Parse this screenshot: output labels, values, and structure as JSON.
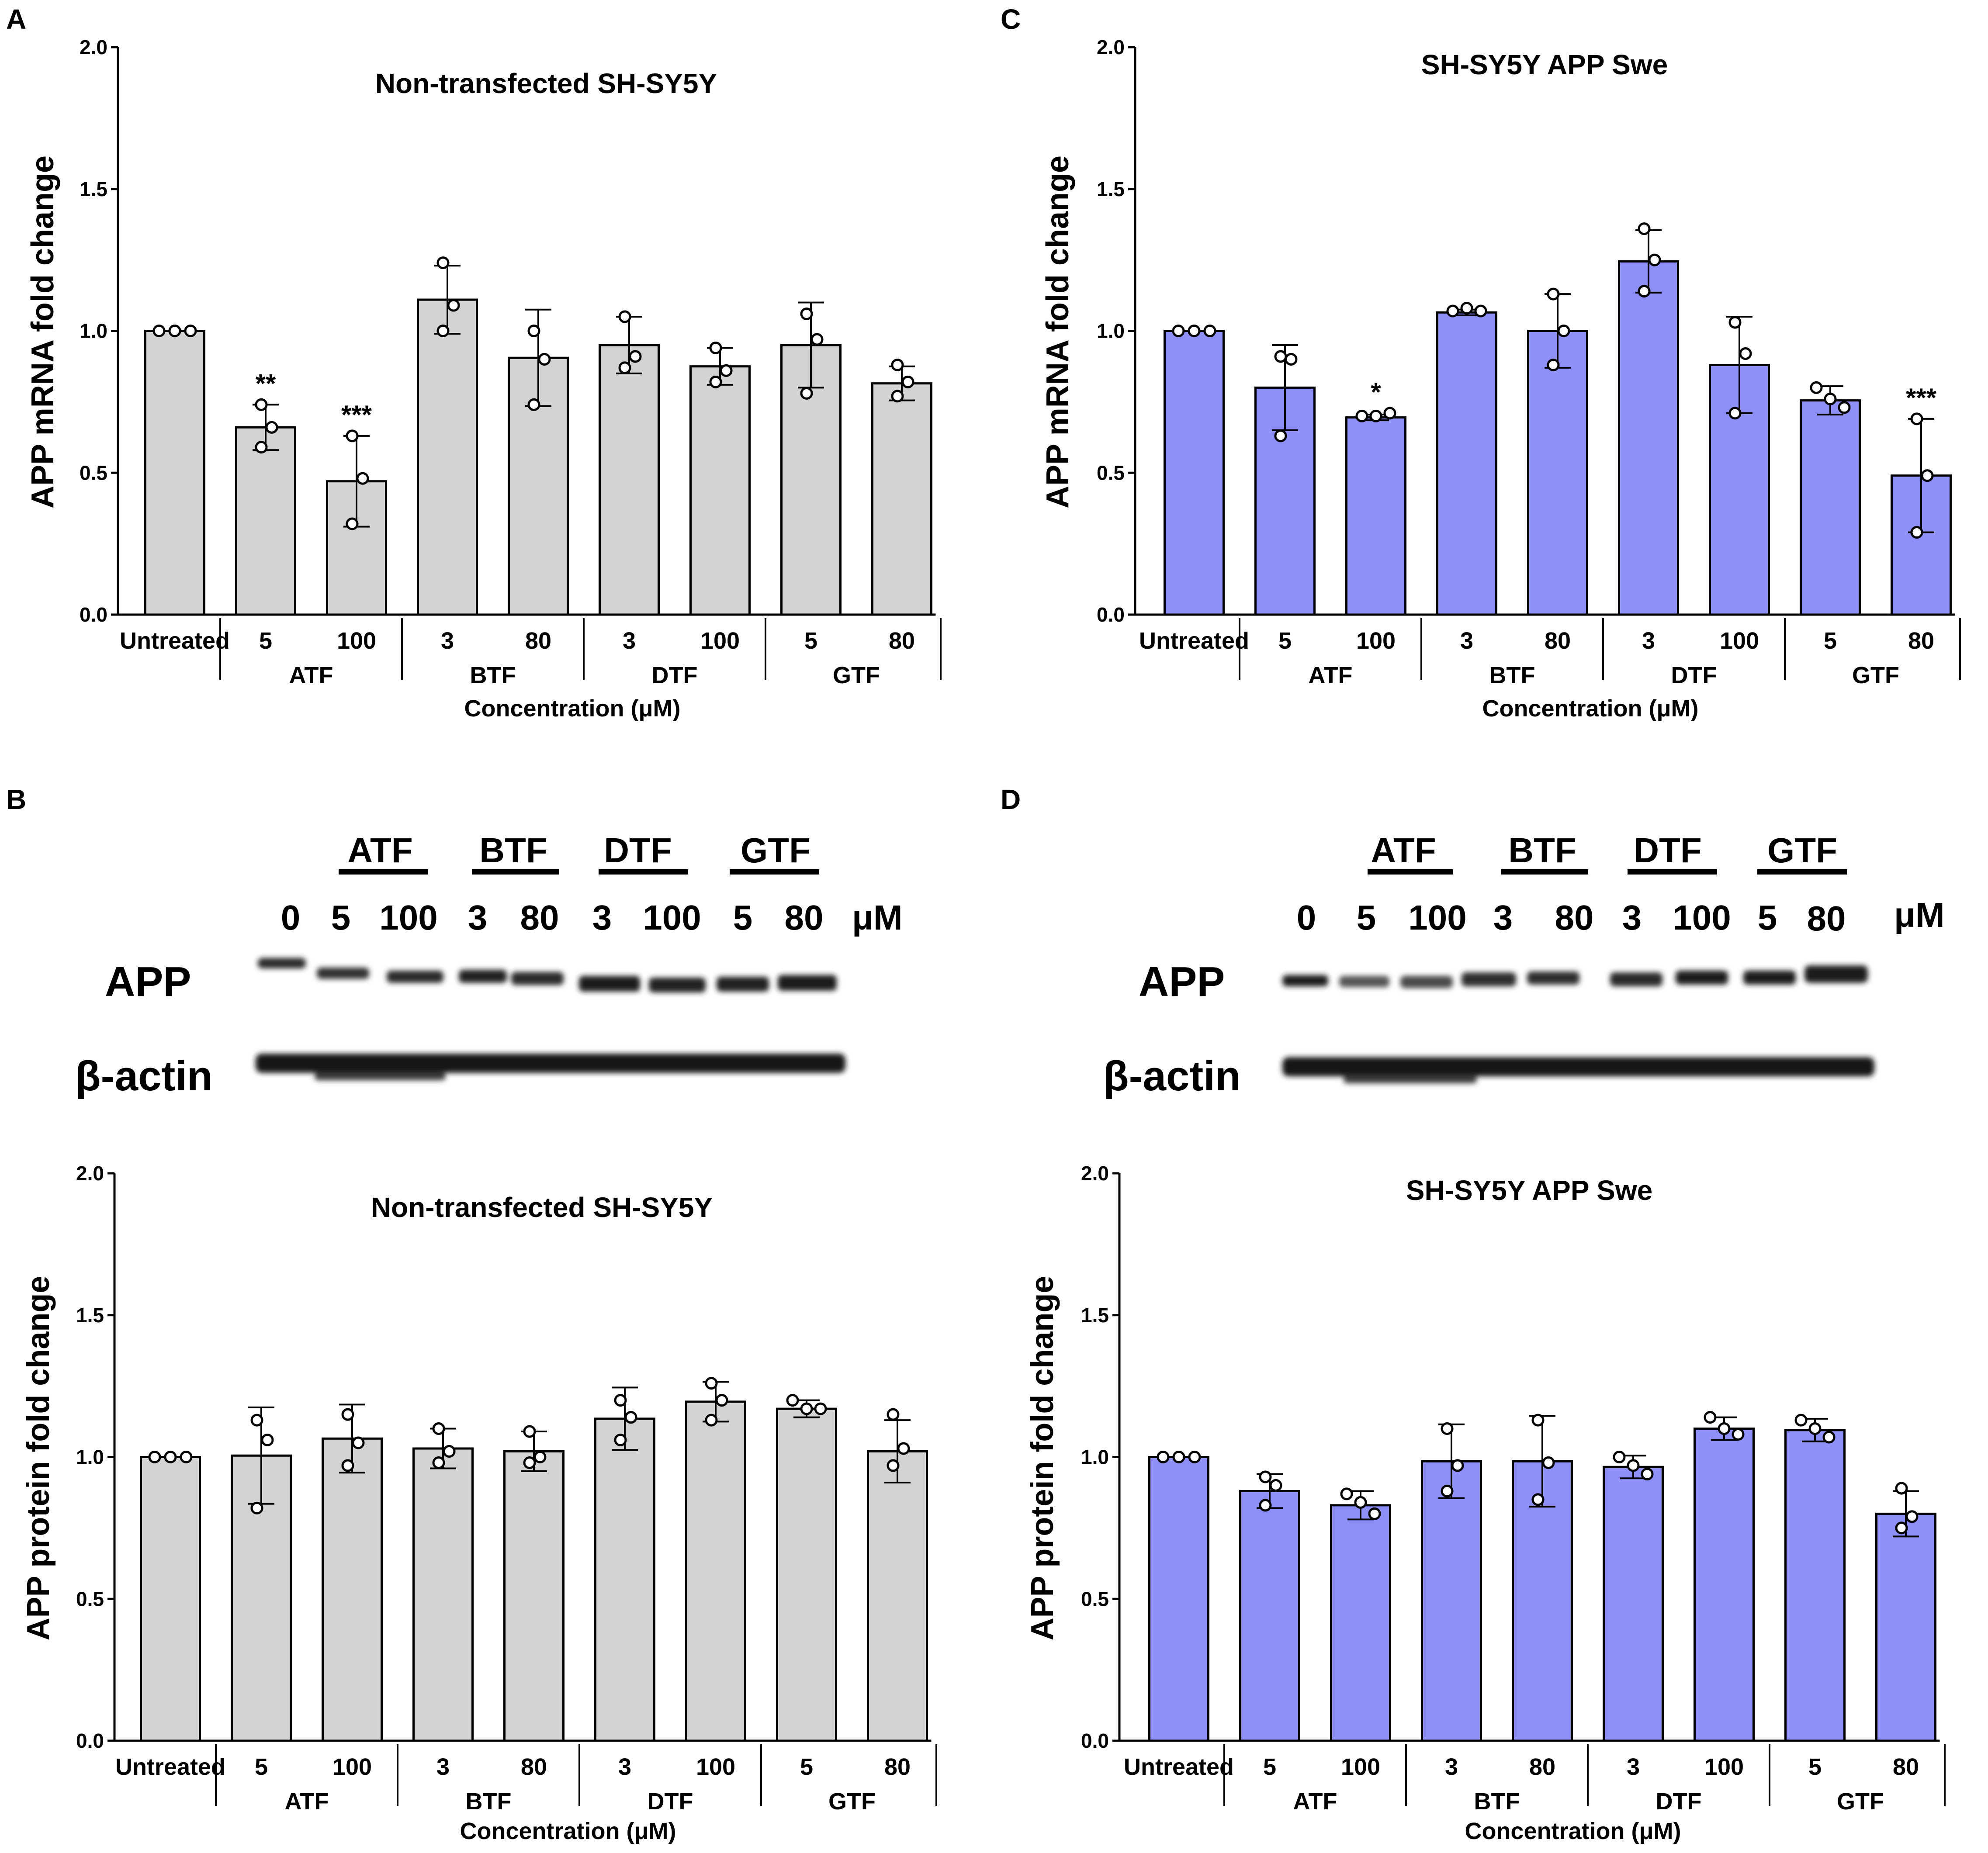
{
  "colors": {
    "grey_bar": "#d3d3d3",
    "blue_bar": "#8f8ff8",
    "axis": "#000000"
  },
  "panel_letters": {
    "a": "A",
    "b": "B",
    "c": "C",
    "d": "D"
  },
  "chart_data": [
    {
      "id": "A",
      "type": "bar",
      "title": "Non-transfected SH-SY5Y",
      "ylabel": "APP mRNA fold change",
      "xlabel": "Concentration (μM)",
      "ylim": [
        0,
        2.0
      ],
      "yticks": [
        "0.0",
        "0.5",
        "1.0",
        "1.5",
        "2.0"
      ],
      "categories": [
        "Untreated",
        "5",
        "100",
        "3",
        "80",
        "3",
        "100",
        "5",
        "80"
      ],
      "groups": [
        "ATF",
        "BTF",
        "DTF",
        "GTF"
      ],
      "values": [
        1.0,
        0.66,
        0.47,
        1.11,
        0.905,
        0.95,
        0.875,
        0.95,
        0.815
      ],
      "sd": [
        0.0,
        0.08,
        0.16,
        0.12,
        0.17,
        0.1,
        0.065,
        0.15,
        0.06
      ],
      "points": [
        [
          1.0,
          1.0,
          1.0
        ],
        [
          0.74,
          0.66,
          0.59
        ],
        [
          0.63,
          0.48,
          0.32
        ],
        [
          1.24,
          1.09,
          1.0
        ],
        [
          1.0,
          0.9,
          0.74
        ],
        [
          1.05,
          0.91,
          0.87
        ],
        [
          0.94,
          0.86,
          0.82
        ],
        [
          1.06,
          0.97,
          0.78
        ],
        [
          0.88,
          0.82,
          0.77
        ]
      ],
      "significance": [
        "",
        "**",
        "***",
        "",
        "",
        "",
        "",
        "",
        ""
      ],
      "bar_color": "#d3d3d3"
    },
    {
      "id": "C",
      "type": "bar",
      "title": "SH-SY5Y APP Swe",
      "ylabel": "APP mRNA fold change",
      "xlabel": "Concentration (μM)",
      "ylim": [
        0,
        2.0
      ],
      "yticks": [
        "0.0",
        "0.5",
        "1.0",
        "1.5",
        "2.0"
      ],
      "categories": [
        "Untreated",
        "5",
        "100",
        "3",
        "80",
        "3",
        "100",
        "5",
        "80"
      ],
      "groups": [
        "ATF",
        "BTF",
        "DTF",
        "GTF"
      ],
      "values": [
        1.0,
        0.8,
        0.695,
        1.065,
        1.0,
        1.245,
        0.88,
        0.755,
        0.49
      ],
      "sd": [
        0.0,
        0.15,
        0.01,
        0.01,
        0.13,
        0.11,
        0.17,
        0.05,
        0.2
      ],
      "points": [
        [
          1.0,
          1.0,
          1.0
        ],
        [
          0.91,
          0.9,
          0.63
        ],
        [
          0.7,
          0.7,
          0.71
        ],
        [
          1.07,
          1.08,
          1.07
        ],
        [
          1.13,
          1.0,
          0.88
        ],
        [
          1.36,
          1.25,
          1.14
        ],
        [
          1.03,
          0.92,
          0.71
        ],
        [
          0.8,
          0.76,
          0.73
        ],
        [
          0.69,
          0.49,
          0.29
        ]
      ],
      "significance": [
        "",
        "",
        "*",
        "",
        "",
        "",
        "",
        "",
        "***"
      ],
      "bar_color": "#8f8ff8"
    },
    {
      "id": "B",
      "type": "bar",
      "title": "Non-transfected SH-SY5Y",
      "ylabel": "APP protein fold change",
      "xlabel": "Concentration (μM)",
      "ylim": [
        0,
        2.0
      ],
      "yticks": [
        "0.0",
        "0.5",
        "1.0",
        "1.5",
        "2.0"
      ],
      "categories": [
        "Untreated",
        "5",
        "100",
        "3",
        "80",
        "3",
        "100",
        "5",
        "80"
      ],
      "groups": [
        "ATF",
        "BTF",
        "DTF",
        "GTF"
      ],
      "values": [
        1.0,
        1.005,
        1.065,
        1.03,
        1.02,
        1.135,
        1.195,
        1.17,
        1.02
      ],
      "sd": [
        0.0,
        0.17,
        0.12,
        0.07,
        0.07,
        0.11,
        0.07,
        0.03,
        0.11
      ],
      "points": [
        [
          1.0,
          1.0,
          1.0
        ],
        [
          1.13,
          1.06,
          0.82
        ],
        [
          1.15,
          1.05,
          0.97
        ],
        [
          1.1,
          1.02,
          0.98
        ],
        [
          1.09,
          1.0,
          0.98
        ],
        [
          1.2,
          1.14,
          1.06
        ],
        [
          1.26,
          1.2,
          1.13
        ],
        [
          1.2,
          1.17,
          1.17
        ],
        [
          1.15,
          1.03,
          0.97
        ]
      ],
      "significance": [
        "",
        "",
        "",
        "",
        "",
        "",
        "",
        "",
        ""
      ],
      "bar_color": "#d3d3d3"
    },
    {
      "id": "D",
      "type": "bar",
      "title": "SH-SY5Y APP Swe",
      "ylabel": "APP protein fold change",
      "xlabel": "Concentration (μM)",
      "ylim": [
        0,
        2.0
      ],
      "yticks": [
        "0.0",
        "0.5",
        "1.0",
        "1.5",
        "2.0"
      ],
      "categories": [
        "Untreated",
        "5",
        "100",
        "3",
        "80",
        "3",
        "100",
        "5",
        "80"
      ],
      "groups": [
        "ATF",
        "BTF",
        "DTF",
        "GTF"
      ],
      "values": [
        1.0,
        0.88,
        0.83,
        0.985,
        0.985,
        0.965,
        1.1,
        1.095,
        0.8
      ],
      "sd": [
        0.0,
        0.06,
        0.05,
        0.13,
        0.16,
        0.04,
        0.04,
        0.04,
        0.08
      ],
      "points": [
        [
          1.0,
          1.0,
          1.0
        ],
        [
          0.93,
          0.9,
          0.83
        ],
        [
          0.87,
          0.84,
          0.8
        ],
        [
          1.1,
          0.97,
          0.88
        ],
        [
          1.13,
          0.98,
          0.85
        ],
        [
          1.0,
          0.97,
          0.94
        ],
        [
          1.14,
          1.1,
          1.08
        ],
        [
          1.13,
          1.1,
          1.07
        ],
        [
          0.89,
          0.79,
          0.75
        ]
      ],
      "significance": [
        "",
        "",
        "",
        "",
        "",
        "",
        "",
        "",
        ""
      ],
      "bar_color": "#8f8ff8"
    }
  ],
  "blots": [
    {
      "id": "B",
      "group_labels": [
        "ATF",
        "BTF",
        "DTF",
        "GTF"
      ],
      "conc_labels": [
        "0",
        "5",
        "100",
        "3",
        "80",
        "3",
        "100",
        "5",
        "80"
      ],
      "unit": "μM",
      "row_labels": {
        "app": "APP",
        "actin": "β-actin"
      }
    },
    {
      "id": "D",
      "group_labels": [
        "ATF",
        "BTF",
        "DTF",
        "GTF"
      ],
      "conc_labels": [
        "0",
        "5",
        "100",
        "3",
        "80",
        "3",
        "100",
        "5",
        "80"
      ],
      "unit": "μM",
      "row_labels": {
        "app": "APP",
        "actin": "β-actin"
      }
    }
  ]
}
